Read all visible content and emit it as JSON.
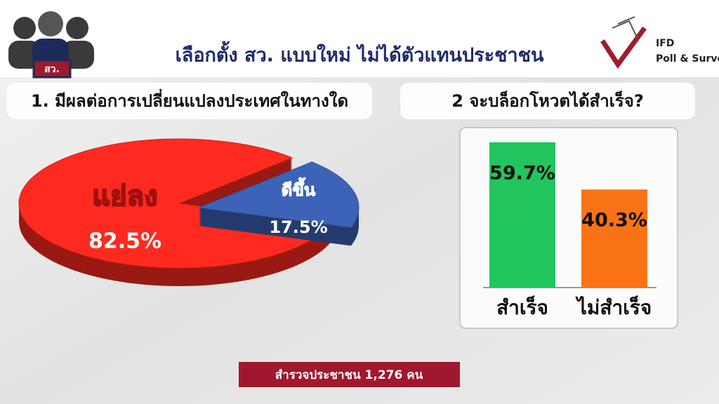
{
  "header": {
    "title": "เลือกตั้ง สว. แบบใหม่ ไม่ได้ตัวแทนประชาชน",
    "badge": "สว.",
    "logo": [
      "IFD",
      "Poll & Survey"
    ]
  },
  "chart_data": [
    {
      "type": "pie",
      "title": "1. มีผลต่อการเปลี่ยนแปลงประเทศในทางใด",
      "categories": [
        "แย่ลง",
        "ดีขึ้น"
      ],
      "values": [
        82.5,
        17.5
      ],
      "value_labels": [
        "82.5%",
        "17.5%"
      ],
      "colors": [
        "#ff2a1f",
        "#3d63b8"
      ]
    },
    {
      "type": "bar",
      "title": "2 จะบล็อกโหวตได้สำเร็จ?",
      "categories": [
        "สำเร็จ",
        "ไม่สำเร็จ"
      ],
      "values": [
        59.7,
        40.3
      ],
      "value_labels": [
        "59.7%",
        "40.3%"
      ],
      "colors": [
        "#22c55e",
        "#f97316"
      ]
    }
  ],
  "footer": "สำรวจประชาชน 1,276 คน"
}
